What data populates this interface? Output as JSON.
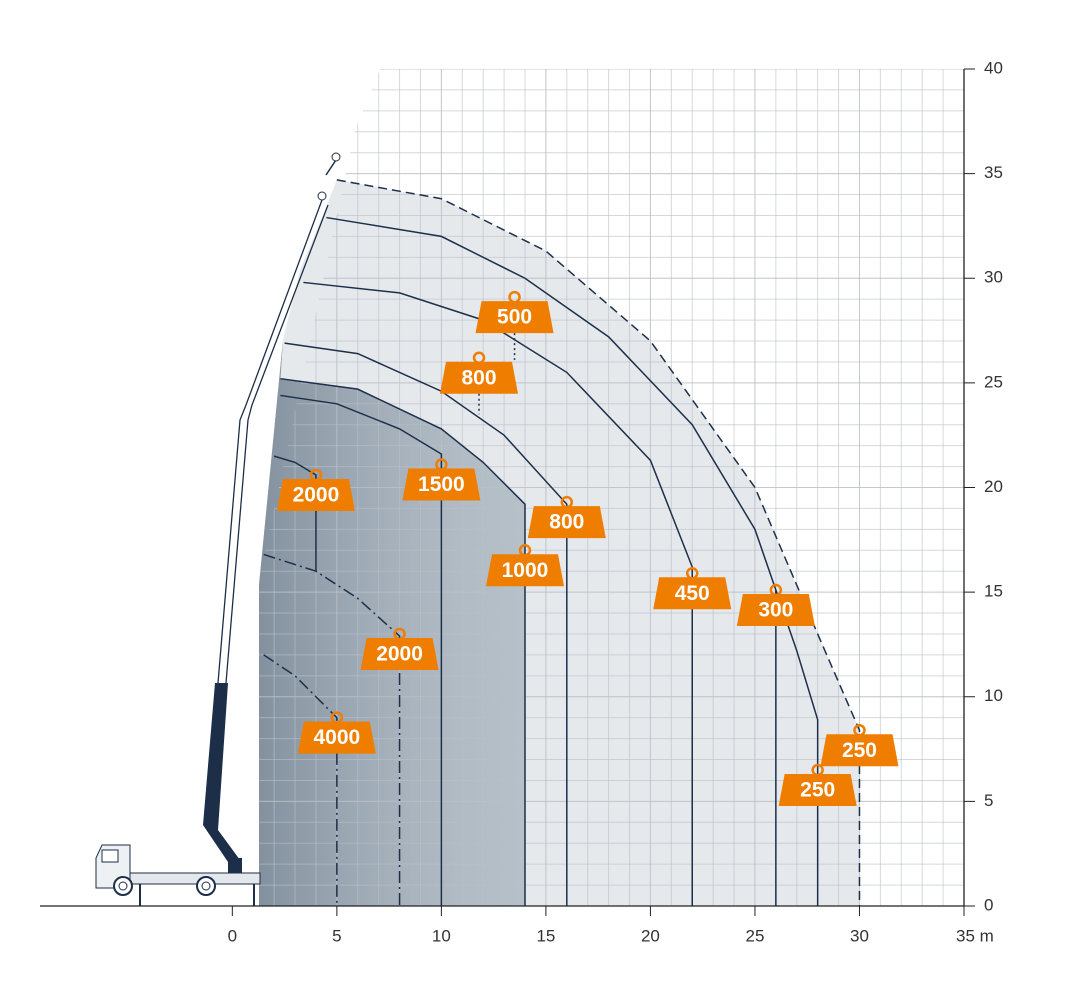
{
  "chart_data": {
    "type": "load-chart",
    "xlim": [
      -9.2,
      35
    ],
    "ylim": [
      0,
      40
    ],
    "xticks": [
      0,
      5,
      10,
      15,
      20,
      25,
      30,
      {
        "value": 35,
        "label": "35 m"
      }
    ],
    "yticks": [
      0,
      5,
      10,
      15,
      20,
      25,
      30,
      35,
      40
    ],
    "grid": true,
    "curves": [
      {
        "style": "dashed",
        "fill": "#e1e5e9",
        "x": [
          5,
          10,
          15,
          20,
          25,
          28,
          30,
          30
        ],
        "y": [
          34.7,
          33.8,
          31.3,
          27,
          20,
          13,
          8.4,
          0
        ]
      },
      {
        "style": "solid",
        "fill": "#aeb8c2",
        "x": [
          2.3,
          6,
          10,
          12,
          14,
          14
        ],
        "y": [
          25.2,
          24.7,
          22.8,
          21.2,
          19.2,
          0
        ]
      },
      {
        "style": "solid",
        "x": [
          2,
          3,
          4,
          4
        ],
        "y": [
          21.5,
          21.2,
          20.6,
          16
        ]
      },
      {
        "style": "solid",
        "x": [
          2.3,
          5,
          8,
          10,
          10
        ],
        "y": [
          24.4,
          24,
          22.8,
          21.6,
          0
        ]
      },
      {
        "style": "solid",
        "x": [
          2.5,
          6,
          10,
          13,
          16,
          16
        ],
        "y": [
          26.9,
          26.4,
          24.6,
          22.5,
          19.2,
          0
        ]
      },
      {
        "style": "solid",
        "x": [
          3.4,
          8,
          12,
          16,
          20,
          22,
          22
        ],
        "y": [
          29.8,
          29.3,
          28,
          25.5,
          21.3,
          16.2,
          0
        ]
      },
      {
        "style": "solid",
        "x": [
          4.5,
          10,
          14,
          18,
          22,
          25,
          26,
          27,
          28,
          28
        ],
        "y": [
          32.9,
          32,
          30,
          27.2,
          23,
          18,
          15.1,
          12.2,
          8.9,
          0
        ]
      },
      {
        "style": "solid",
        "x": [
          26,
          26
        ],
        "y": [
          15.1,
          0
        ]
      },
      {
        "style": "dashdot",
        "x": [
          1.5,
          4,
          6,
          8,
          8
        ],
        "y": [
          16.8,
          16,
          14.7,
          12.9,
          0
        ]
      },
      {
        "style": "dashdot",
        "x": [
          1.5,
          3,
          5,
          5
        ],
        "y": [
          12,
          11,
          9,
          0
        ]
      }
    ],
    "labels": [
      {
        "value": 500,
        "x": 13.5,
        "y": 29.1,
        "pointer_y": 26.1
      },
      {
        "value": 800,
        "x": 11.8,
        "y": 26.2,
        "pointer_y": 23.5
      },
      {
        "value": 2000,
        "x": 4,
        "y": 20.6
      },
      {
        "value": 1500,
        "x": 10,
        "y": 21.1
      },
      {
        "value": 800,
        "x": 16,
        "y": 19.3
      },
      {
        "value": 1000,
        "x": 14,
        "y": 17
      },
      {
        "value": 450,
        "x": 22,
        "y": 15.9
      },
      {
        "value": 300,
        "x": 26,
        "y": 15.1
      },
      {
        "value": 250,
        "x": 30,
        "y": 8.4
      },
      {
        "value": 250,
        "x": 28,
        "y": 6.5
      },
      {
        "value": 2000,
        "x": 8,
        "y": 13
      },
      {
        "value": 4000,
        "x": 5,
        "y": 9
      }
    ],
    "curve_color": "#1d2f4a",
    "tag_color": "#ef7d00"
  }
}
